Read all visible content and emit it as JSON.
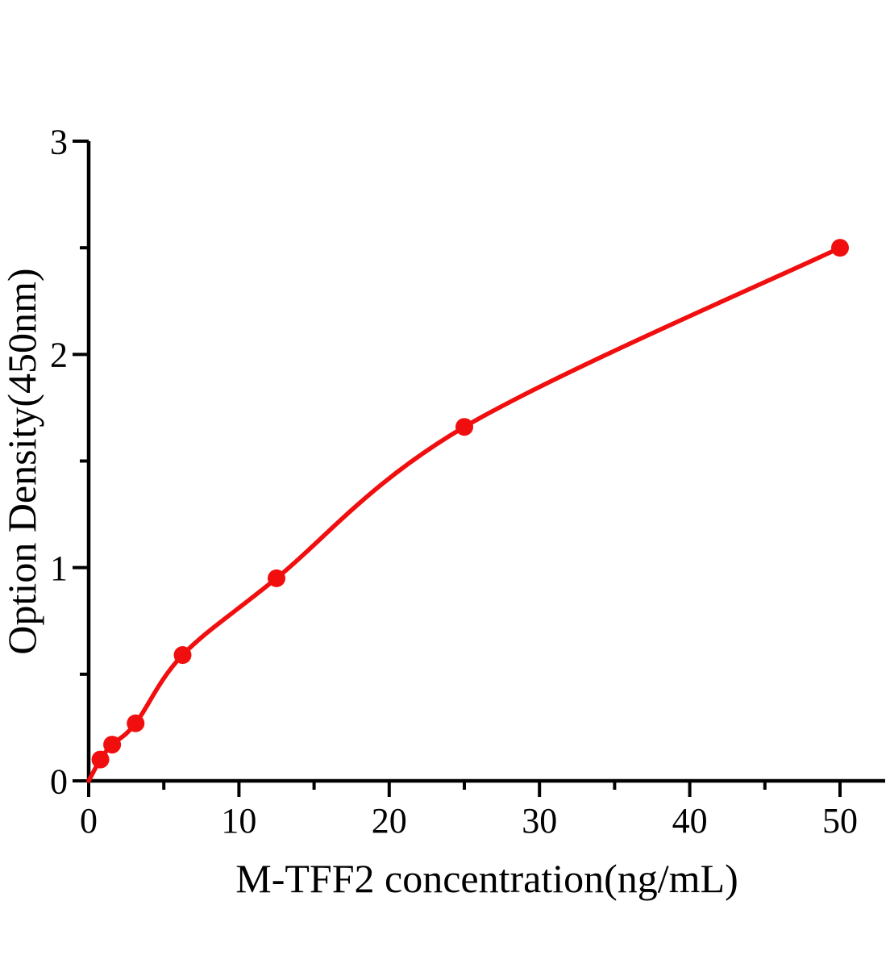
{
  "figure": {
    "background": "#ffffff",
    "description": "ELISA standard curve plot"
  },
  "chart_data": {
    "type": "scatter",
    "title": "",
    "xlabel": "M-TFF2 concentration(ng/mL)",
    "ylabel": "Option Density(450nm)",
    "x": [
      0.78,
      1.56,
      3.125,
      6.25,
      12.5,
      25,
      50
    ],
    "y": [
      0.1,
      0.17,
      0.27,
      0.59,
      0.95,
      1.66,
      2.5
    ],
    "curve_through_origin": true,
    "xlim": [
      0,
      53
    ],
    "ylim": [
      0,
      3
    ],
    "x_major_ticks": [
      0,
      10,
      20,
      30,
      40,
      50
    ],
    "x_minor_ticks": [
      5,
      15,
      25,
      35,
      45
    ],
    "y_major_ticks": [
      0,
      1,
      2,
      3
    ],
    "y_minor_ticks": [
      0.5,
      1.5,
      2.5
    ],
    "x_tick_labels": [
      "0",
      "10",
      "20",
      "30",
      "40",
      "50"
    ],
    "y_tick_labels": [
      "0",
      "1",
      "2",
      "3"
    ],
    "marker": "circle",
    "line_color": "#f10e0e",
    "marker_color": "#f10e0e",
    "axis_color": "#000000",
    "grid": false,
    "legend": null
  }
}
